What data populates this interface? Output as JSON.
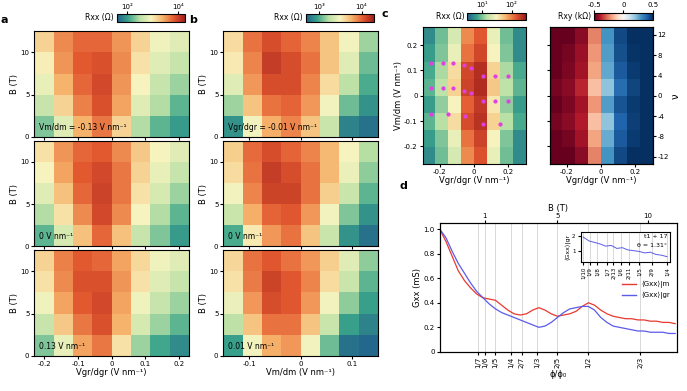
{
  "chart_data": [
    {
      "type": "heatmap",
      "title": "a",
      "annotations": [
        "Vm/dm = -0.13 V nm⁻¹"
      ],
      "y_label": "B (T)",
      "xlim": [
        -0.23,
        0.23
      ],
      "ylim": [
        0,
        12.5
      ],
      "xticks": [
        -0.2,
        -0.1,
        0,
        0.1,
        0.2
      ],
      "yticks": [
        0,
        5,
        10
      ],
      "tick_labels": "y",
      "log": true,
      "clim": [
        40,
        20000
      ],
      "colorbar": {
        "label": "Rxx (Ω)",
        "ticks": [
          {
            "value": 100,
            "label": "10²"
          },
          {
            "value": 10000,
            "label": "10⁴"
          }
        ]
      },
      "z": [
        [
          200,
          600,
          2500,
          5000,
          1500,
          300,
          150,
          100
        ],
        [
          400,
          1500,
          4500,
          8000,
          3000,
          600,
          300,
          150
        ],
        [
          700,
          2500,
          6000,
          9000,
          3500,
          900,
          400,
          250
        ],
        [
          1000,
          3500,
          7000,
          8000,
          4000,
          1200,
          600,
          400
        ],
        [
          1500,
          4000,
          6000,
          6000,
          3500,
          1500,
          800,
          600
        ]
      ]
    },
    {
      "type": "heatmap",
      "annotations": [
        "0 V nm⁻¹"
      ],
      "y_label": "B (T)",
      "xlim": [
        -0.23,
        0.23
      ],
      "ylim": [
        0,
        12.5
      ],
      "xticks": [
        -0.2,
        -0.1,
        0,
        0.1,
        0.2
      ],
      "yticks": [
        0,
        5,
        10
      ],
      "tick_labels": "y",
      "log": true,
      "clim": [
        40,
        20000
      ],
      "z": [
        [
          150,
          500,
          2000,
          6000,
          2000,
          400,
          200,
          100
        ],
        [
          300,
          1200,
          4000,
          9000,
          4000,
          900,
          300,
          150
        ],
        [
          600,
          2000,
          6000,
          10000,
          5000,
          1200,
          500,
          250
        ],
        [
          900,
          3000,
          7000,
          9000,
          5000,
          1500,
          700,
          400
        ],
        [
          1200,
          3500,
          6000,
          7000,
          4000,
          1800,
          900,
          600
        ]
      ]
    },
    {
      "type": "heatmap",
      "annotations": [
        "0.13 V nm⁻¹"
      ],
      "y_label": "B (T)",
      "x_label": "Vgr/dgr (V nm⁻¹)",
      "xlim": [
        -0.23,
        0.23
      ],
      "ylim": [
        0,
        12.5
      ],
      "xticks": [
        -0.2,
        -0.1,
        0,
        0.1,
        0.2
      ],
      "yticks": [
        0,
        5,
        10
      ],
      "log": true,
      "clim": [
        40,
        20000
      ],
      "z": [
        [
          200,
          700,
          3000,
          5000,
          1200,
          250,
          120,
          80
        ],
        [
          400,
          1800,
          5000,
          8000,
          2500,
          500,
          250,
          150
        ],
        [
          800,
          3000,
          7000,
          9000,
          3000,
          800,
          400,
          250
        ],
        [
          1200,
          4000,
          8000,
          8000,
          3500,
          1200,
          600,
          400
        ],
        [
          1500,
          4500,
          7000,
          6000,
          3000,
          1400,
          800,
          600
        ]
      ]
    },
    {
      "type": "heatmap",
      "title": "b",
      "annotations": [
        "Vgr/dgr = -0.01 V nm⁻¹"
      ],
      "y_label": "B (T)",
      "xlim": [
        -0.15,
        0.15
      ],
      "ylim": [
        0,
        12.5
      ],
      "xticks": [
        -0.1,
        0,
        0.1
      ],
      "yticks": [
        0,
        5,
        10
      ],
      "tick_labels": "y",
      "log": true,
      "clim": [
        500,
        20000
      ],
      "colorbar": {
        "label": "Rxx (Ω)",
        "ticks": [
          {
            "value": 1000,
            "label": "10³"
          },
          {
            "value": 10000,
            "label": "10⁴"
          }
        ]
      },
      "z": [
        [
          800,
          3000,
          6000,
          8000,
          5000,
          2000,
          700,
          600
        ],
        [
          1500,
          5000,
          9000,
          10000,
          7000,
          3000,
          1200,
          800
        ],
        [
          2500,
          7000,
          12000,
          12000,
          8000,
          4000,
          1800,
          1000
        ],
        [
          3500,
          8000,
          14000,
          12000,
          9000,
          5000,
          2500,
          1200
        ],
        [
          4000,
          9000,
          12000,
          10000,
          8000,
          5000,
          3000,
          1500
        ]
      ]
    },
    {
      "type": "heatmap",
      "annotations": [
        "0 V nm⁻¹"
      ],
      "y_label": "B (T)",
      "xlim": [
        -0.15,
        0.15
      ],
      "ylim": [
        0,
        12.5
      ],
      "xticks": [
        -0.1,
        0,
        0.1
      ],
      "yticks": [
        0,
        5,
        10
      ],
      "tick_labels": "y",
      "log": true,
      "clim": [
        500,
        20000
      ],
      "z": [
        [
          1000,
          3500,
          7000,
          9000,
          5000,
          2000,
          800,
          600
        ],
        [
          2000,
          6000,
          10000,
          11000,
          7000,
          3000,
          1300,
          800
        ],
        [
          3000,
          8000,
          13000,
          13000,
          9000,
          4500,
          2000,
          1100
        ],
        [
          4000,
          9000,
          14000,
          12000,
          9000,
          5500,
          2800,
          1400
        ],
        [
          4500,
          9500,
          12000,
          10000,
          8000,
          5500,
          3200,
          1700
        ]
      ]
    },
    {
      "type": "heatmap",
      "annotations": [
        "0.01 V nm⁻¹"
      ],
      "y_label": "B (T)",
      "x_label": "Vm/dm (V nm⁻¹)",
      "xlim": [
        -0.15,
        0.15
      ],
      "ylim": [
        0,
        12.5
      ],
      "xticks": [
        -0.1,
        0,
        0.1
      ],
      "yticks": [
        0,
        5,
        10
      ],
      "log": true,
      "clim": [
        500,
        20000
      ],
      "z": [
        [
          900,
          3000,
          6000,
          7000,
          3000,
          1200,
          600,
          550
        ],
        [
          1800,
          5000,
          9000,
          9000,
          5000,
          2000,
          900,
          700
        ],
        [
          2800,
          7000,
          12000,
          11000,
          7000,
          3000,
          1400,
          900
        ],
        [
          3800,
          8500,
          13000,
          11000,
          8000,
          4000,
          2000,
          1100
        ],
        [
          4200,
          9000,
          11000,
          9000,
          7000,
          4500,
          2500,
          1400
        ]
      ]
    },
    {
      "type": "heatmap",
      "title": "c",
      "y_label": "Vm/dm (V nm⁻¹)",
      "x_label": "Vgr/dgr (V nm⁻¹)",
      "xlim": [
        -0.3,
        0.3
      ],
      "ylim": [
        -0.27,
        0.27
      ],
      "xticks": [
        -0.2,
        0,
        0.2
      ],
      "yticks": [
        -0.2,
        -0.1,
        0,
        0.1,
        0.2
      ],
      "log": true,
      "clim": [
        3,
        300
      ],
      "colorbar": {
        "label": "Rxx (Ω)",
        "ticks": [
          {
            "value": 10,
            "label": "10¹"
          },
          {
            "value": 100,
            "label": "10²"
          }
        ]
      },
      "z": [
        [
          5,
          9,
          20,
          90,
          150,
          25,
          9,
          5
        ],
        [
          6,
          10,
          25,
          110,
          180,
          30,
          10,
          5
        ],
        [
          8,
          14,
          40,
          160,
          220,
          45,
          14,
          7
        ],
        [
          6,
          11,
          30,
          130,
          200,
          35,
          11,
          6
        ],
        [
          8,
          15,
          45,
          180,
          240,
          50,
          15,
          8
        ],
        [
          7,
          13,
          40,
          170,
          230,
          45,
          13,
          7
        ],
        [
          6,
          10,
          25,
          110,
          170,
          30,
          10,
          5
        ],
        [
          5,
          9,
          20,
          90,
          140,
          25,
          9,
          5
        ]
      ],
      "series": [
        {
          "color": "#e040e0",
          "marker": "o",
          "x": [
            -0.25,
            -0.18,
            -0.12,
            -0.06,
            -0.02,
            0.05,
            0.12,
            0.2,
            -0.25,
            -0.18,
            -0.12,
            -0.06,
            -0.02,
            0.05,
            0.12,
            0.2,
            -0.25,
            -0.15,
            -0.05,
            0.05,
            0.15
          ],
          "values": [
            0.13,
            0.13,
            0.13,
            0.12,
            0.11,
            0.08,
            0.08,
            0.08,
            0.03,
            0.03,
            0.03,
            0.02,
            0.01,
            -0.02,
            -0.02,
            -0.02,
            -0.07,
            -0.07,
            -0.08,
            -0.11,
            -0.11
          ]
        }
      ]
    },
    {
      "type": "heatmap",
      "x_label": "Vgr/dgr (V nm⁻¹)",
      "y2_label": "ν",
      "xlim": [
        -0.3,
        0.3
      ],
      "ylim": [
        -0.27,
        0.27
      ],
      "xticks": [
        -0.2,
        0,
        0.2
      ],
      "yticks": [
        -0.2,
        -0.1,
        0,
        0.1,
        0.2
      ],
      "y2lim": [
        -13.5,
        13.5
      ],
      "y2ticks": [
        -12,
        -8,
        -4,
        0,
        4,
        8,
        12
      ],
      "tick_labels": "x",
      "clim": [
        -0.5,
        0.5
      ],
      "colorbar": {
        "label": "Rxy (kΩ)",
        "ticks": [
          -0.5,
          0,
          0.5
        ]
      },
      "z": [
        [
          -0.5,
          -0.5,
          -0.45,
          -0.25,
          0.3,
          0.45,
          0.5,
          0.5
        ],
        [
          -0.5,
          -0.48,
          -0.42,
          -0.2,
          0.25,
          0.42,
          0.48,
          0.5
        ],
        [
          -0.48,
          -0.45,
          -0.4,
          -0.15,
          0.2,
          0.4,
          0.47,
          0.5
        ],
        [
          -0.5,
          -0.47,
          -0.42,
          -0.22,
          0.28,
          0.43,
          0.48,
          0.5
        ],
        [
          -0.48,
          -0.45,
          -0.38,
          -0.15,
          0.2,
          0.38,
          0.46,
          0.5
        ],
        [
          -0.5,
          -0.47,
          -0.42,
          -0.2,
          0.26,
          0.42,
          0.48,
          0.5
        ],
        [
          -0.5,
          -0.48,
          -0.43,
          -0.22,
          0.28,
          0.44,
          0.49,
          0.5
        ],
        [
          -0.5,
          -0.5,
          -0.45,
          -0.25,
          0.3,
          0.45,
          0.5,
          0.5
        ]
      ]
    },
    {
      "type": "line",
      "title": "d",
      "x_label": "ϕ/ϕ₀",
      "y_label": "Gxx (mS)",
      "x2_label": "B (T)",
      "xlim": [
        0.02,
        0.785
      ],
      "ylim": [
        0,
        1.05
      ],
      "xticks": [
        {
          "value": 0.1429,
          "label": "1/7"
        },
        {
          "value": 0.1667,
          "label": "1/6"
        },
        {
          "value": 0.2,
          "label": "1/5"
        },
        {
          "value": 0.25,
          "label": "1/4"
        },
        {
          "value": 0.2857,
          "label": "2/7"
        },
        {
          "value": 0.3333,
          "label": "1/3"
        },
        {
          "value": 0.4,
          "label": "2/5"
        },
        {
          "value": 0.5,
          "label": "1/2"
        },
        {
          "value": 0.6667,
          "label": "2/3"
        }
      ],
      "yticks": [
        0,
        0.2,
        0.4,
        0.6,
        0.8,
        1.0
      ],
      "x2lim": [
        -1.5,
        11.6
      ],
      "x2ticks": [
        1,
        5,
        10
      ],
      "grid": true,
      "legend": "center right",
      "x": [
        0.02,
        0.04,
        0.06,
        0.08,
        0.1,
        0.12,
        0.14,
        0.16,
        0.18,
        0.2,
        0.22,
        0.24,
        0.26,
        0.28,
        0.3,
        0.32,
        0.34,
        0.36,
        0.38,
        0.4,
        0.42,
        0.44,
        0.46,
        0.48,
        0.5,
        0.52,
        0.54,
        0.56,
        0.58,
        0.6,
        0.62,
        0.64,
        0.66,
        0.68,
        0.7,
        0.72,
        0.74,
        0.76,
        0.78
      ],
      "series": [
        {
          "name": "⟨Gxx⟩|m",
          "color": "#e8392f",
          "values": [
            1.0,
            0.9,
            0.78,
            0.66,
            0.58,
            0.52,
            0.47,
            0.44,
            0.43,
            0.42,
            0.38,
            0.34,
            0.31,
            0.3,
            0.31,
            0.34,
            0.36,
            0.34,
            0.31,
            0.29,
            0.3,
            0.31,
            0.33,
            0.37,
            0.4,
            0.38,
            0.34,
            0.31,
            0.29,
            0.28,
            0.27,
            0.27,
            0.26,
            0.26,
            0.25,
            0.25,
            0.24,
            0.24,
            0.23
          ]
        },
        {
          "name": "⟨Gxx⟩|gr",
          "color": "#5b5be8",
          "values": [
            1.0,
            0.93,
            0.82,
            0.72,
            0.64,
            0.56,
            0.49,
            0.44,
            0.39,
            0.35,
            0.32,
            0.3,
            0.28,
            0.26,
            0.24,
            0.22,
            0.2,
            0.21,
            0.24,
            0.28,
            0.32,
            0.35,
            0.36,
            0.37,
            0.37,
            0.34,
            0.28,
            0.24,
            0.21,
            0.2,
            0.19,
            0.18,
            0.17,
            0.17,
            0.16,
            0.16,
            0.16,
            0.15,
            0.15
          ]
        }
      ]
    },
    {
      "type": "line",
      "y_label": "⟨Gxx⟩|gr",
      "annotations": [
        "t1 + 17",
        "θ = 1.31°"
      ],
      "xlim": [
        0.095,
        0.255
      ],
      "ylim": [
        0.3,
        2.3
      ],
      "yticks": [
        1,
        2
      ],
      "xticks": [
        {
          "value": 0.1,
          "label": "1/10"
        },
        {
          "value": 0.1111,
          "label": "1/9"
        },
        {
          "value": 0.125,
          "label": "1/8"
        },
        {
          "value": 0.1429,
          "label": "1/7"
        },
        {
          "value": 0.1538,
          "label": "2/13"
        },
        {
          "value": 0.1667,
          "label": "1/6"
        },
        {
          "value": 0.1818,
          "label": "2/11"
        },
        {
          "value": 0.2,
          "label": "1/5"
        },
        {
          "value": 0.2222,
          "label": "2/9"
        },
        {
          "value": 0.25,
          "label": "1/4"
        }
      ],
      "grid": true,
      "x": [
        0.1,
        0.11,
        0.12,
        0.13,
        0.14,
        0.15,
        0.16,
        0.17,
        0.18,
        0.19,
        0.2,
        0.21,
        0.22,
        0.23,
        0.24,
        0.25
      ],
      "series": [
        {
          "color": "#5b5be8",
          "values": [
            1.95,
            1.7,
            1.6,
            1.5,
            1.35,
            1.4,
            1.2,
            1.25,
            1.1,
            1.05,
            1.0,
            0.9,
            0.95,
            0.8,
            0.75,
            0.65
          ]
        }
      ]
    }
  ]
}
